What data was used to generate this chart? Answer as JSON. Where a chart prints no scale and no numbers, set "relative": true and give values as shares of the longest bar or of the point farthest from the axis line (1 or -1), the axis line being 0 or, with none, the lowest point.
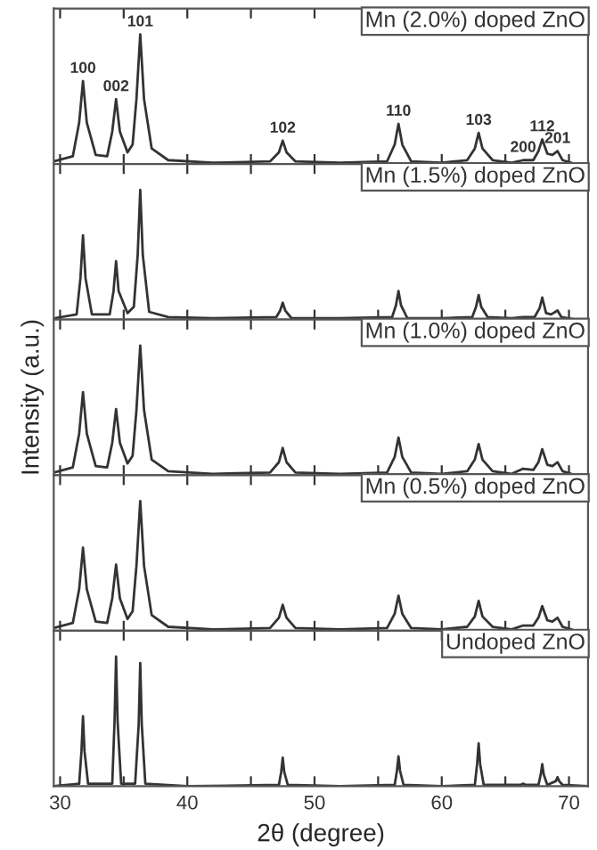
{
  "chart_data": [
    {
      "type": "line",
      "relative": true,
      "xlim": [
        29.5,
        71.5
      ],
      "xticks": [
        30,
        {
          "value": 35,
          "label": null
        },
        40,
        {
          "value": 45,
          "label": null
        },
        50,
        {
          "value": 55,
          "label": null
        },
        60,
        {
          "value": 65,
          "label": null
        },
        70
      ],
      "tick_labels": false,
      "annotations": [
        "Mn (2.0%) doped ZnO",
        {
          "text": "100",
          "x": 31.8,
          "y": 0.64
        },
        {
          "text": "002",
          "x": 34.4,
          "y": 0.5
        },
        {
          "text": "101",
          "x": 36.3,
          "y": 1
        },
        {
          "text": "102",
          "x": 47.5,
          "y": 0.18
        },
        {
          "text": "110",
          "x": 56.6,
          "y": 0.31
        },
        {
          "text": "103",
          "x": 62.9,
          "y": 0.24
        },
        {
          "text": "200",
          "x": 66.4,
          "y": 0.03
        },
        {
          "text": "112",
          "x": 67.9,
          "y": 0.19
        },
        {
          "text": "201",
          "x": 69.1,
          "y": 0.1
        }
      ],
      "series": [
        {
          "color": "#333333",
          "x": [
            29.5,
            31.0,
            31.5,
            31.8,
            32.1,
            32.8,
            33.7,
            34.1,
            34.4,
            34.7,
            35.3,
            35.7,
            36.0,
            36.3,
            36.6,
            37.2,
            38.5,
            42,
            46.5,
            47.2,
            47.5,
            47.8,
            48.5,
            52,
            55.7,
            56.3,
            56.6,
            56.9,
            57.6,
            60,
            62.0,
            62.6,
            62.9,
            63.2,
            64,
            65.5,
            66.4,
            67.2,
            67.6,
            67.9,
            68.3,
            68.7,
            69.1,
            69.5,
            70.5,
            71.5
          ],
          "values": [
            0.02,
            0.06,
            0.32,
            0.64,
            0.32,
            0.07,
            0.06,
            0.25,
            0.5,
            0.25,
            0.09,
            0.15,
            0.5,
            1,
            0.5,
            0.12,
            0.03,
            0.01,
            0.02,
            0.09,
            0.18,
            0.09,
            0.02,
            0.01,
            0.02,
            0.15,
            0.31,
            0.15,
            0.02,
            0.01,
            0.03,
            0.12,
            0.24,
            0.12,
            0.03,
            0.01,
            0.03,
            0.03,
            0.1,
            0.19,
            0.08,
            0.07,
            0.1,
            0.03,
            0,
            0
          ]
        }
      ]
    },
    {
      "type": "line",
      "relative": true,
      "xlim": [
        29.5,
        71.5
      ],
      "xticks": [
        30,
        {
          "value": 35,
          "label": null
        },
        40,
        {
          "value": 45,
          "label": null
        },
        50,
        {
          "value": 55,
          "label": null
        },
        60,
        {
          "value": 65,
          "label": null
        },
        70
      ],
      "tick_labels": false,
      "annotations": [
        "Mn (1.5%) doped ZnO"
      ],
      "series": [
        {
          "color": "#333333",
          "x": [
            29.5,
            31.3,
            31.6,
            31.8,
            32.0,
            32.5,
            33.9,
            34.2,
            34.4,
            34.6,
            35.3,
            35.8,
            36.1,
            36.3,
            36.5,
            37.0,
            38.5,
            42,
            47.0,
            47.3,
            47.5,
            47.7,
            48.2,
            52,
            56.1,
            56.4,
            56.6,
            56.8,
            57.3,
            60,
            62.4,
            62.7,
            62.9,
            63.1,
            63.6,
            65.5,
            66.4,
            67.3,
            67.7,
            67.9,
            68.2,
            68.6,
            69.1,
            69.4,
            70.5,
            71.5
          ],
          "values": [
            0.01,
            0.04,
            0.32,
            0.65,
            0.32,
            0.04,
            0.04,
            0.22,
            0.45,
            0.22,
            0.05,
            0.1,
            0.5,
            1,
            0.5,
            0.06,
            0.02,
            0.01,
            0.02,
            0.07,
            0.13,
            0.07,
            0.01,
            0.01,
            0.02,
            0.11,
            0.22,
            0.11,
            0.01,
            0.01,
            0.02,
            0.1,
            0.19,
            0.1,
            0.02,
            0.01,
            0.02,
            0.02,
            0.09,
            0.17,
            0.05,
            0.04,
            0.07,
            0.02,
            0,
            0
          ]
        }
      ]
    },
    {
      "type": "line",
      "relative": true,
      "xlim": [
        29.5,
        71.5
      ],
      "xticks": [
        30,
        {
          "value": 35,
          "label": null
        },
        40,
        {
          "value": 45,
          "label": null
        },
        50,
        {
          "value": 55,
          "label": null
        },
        60,
        {
          "value": 65,
          "label": null
        },
        70
      ],
      "tick_labels": false,
      "ylabel": "Intensity (a.u.)",
      "annotations": [
        "Mn (1.0%) doped ZnO"
      ],
      "series": [
        {
          "color": "#333333",
          "x": [
            29.5,
            31.0,
            31.5,
            31.8,
            32.1,
            32.8,
            33.7,
            34.1,
            34.4,
            34.7,
            35.3,
            35.7,
            36.0,
            36.3,
            36.6,
            37.2,
            38.5,
            42,
            46.5,
            47.2,
            47.5,
            47.8,
            48.5,
            52,
            55.7,
            56.3,
            56.6,
            56.9,
            57.6,
            60,
            62.0,
            62.6,
            62.9,
            63.2,
            64,
            65.5,
            66.4,
            67.2,
            67.6,
            67.9,
            68.3,
            68.7,
            69.1,
            69.5,
            70.5,
            71.5
          ],
          "values": [
            0.02,
            0.06,
            0.32,
            0.64,
            0.32,
            0.07,
            0.06,
            0.25,
            0.51,
            0.25,
            0.09,
            0.15,
            0.5,
            1,
            0.5,
            0.12,
            0.03,
            0.01,
            0.02,
            0.1,
            0.21,
            0.1,
            0.02,
            0.01,
            0.02,
            0.14,
            0.29,
            0.14,
            0.02,
            0.01,
            0.03,
            0.12,
            0.24,
            0.12,
            0.03,
            0.01,
            0.05,
            0.04,
            0.1,
            0.2,
            0.08,
            0.07,
            0.1,
            0.03,
            0,
            0
          ]
        }
      ]
    },
    {
      "type": "line",
      "relative": true,
      "xlim": [
        29.5,
        71.5
      ],
      "xticks": [
        30,
        {
          "value": 35,
          "label": null
        },
        40,
        {
          "value": 45,
          "label": null
        },
        50,
        {
          "value": 55,
          "label": null
        },
        60,
        {
          "value": 65,
          "label": null
        },
        70
      ],
      "tick_labels": false,
      "annotations": [
        "Mn (0.5%) doped ZnO"
      ],
      "series": [
        {
          "color": "#333333",
          "x": [
            29.5,
            31.0,
            31.5,
            31.8,
            32.1,
            32.8,
            33.7,
            34.1,
            34.4,
            34.7,
            35.3,
            35.7,
            36.0,
            36.3,
            36.6,
            37.2,
            38.5,
            42,
            46.5,
            47.2,
            47.5,
            47.8,
            48.5,
            52,
            55.7,
            56.3,
            56.6,
            56.9,
            57.6,
            60,
            62.0,
            62.6,
            62.9,
            63.2,
            64,
            65.5,
            66.4,
            67.2,
            67.6,
            67.9,
            68.3,
            68.7,
            69.1,
            69.5,
            70.5,
            71.5
          ],
          "values": [
            0.02,
            0.06,
            0.32,
            0.64,
            0.32,
            0.07,
            0.06,
            0.25,
            0.51,
            0.25,
            0.09,
            0.15,
            0.5,
            1,
            0.5,
            0.12,
            0.03,
            0.01,
            0.02,
            0.1,
            0.2,
            0.1,
            0.02,
            0.01,
            0.02,
            0.13,
            0.27,
            0.13,
            0.02,
            0.01,
            0.03,
            0.11,
            0.23,
            0.11,
            0.03,
            0.01,
            0.04,
            0.04,
            0.1,
            0.19,
            0.08,
            0.07,
            0.1,
            0.03,
            0,
            0
          ]
        }
      ]
    },
    {
      "type": "line",
      "relative": true,
      "xlim": [
        29.5,
        71.5
      ],
      "xticks": [
        30,
        {
          "value": 35,
          "label": null
        },
        40,
        {
          "value": 45,
          "label": null
        },
        50,
        {
          "value": 55,
          "label": null
        },
        60,
        {
          "value": 65,
          "label": null
        },
        70
      ],
      "tick_labels": "x",
      "xlabel": "2θ (degree)",
      "annotations": [
        "Undoped ZnO"
      ],
      "series": [
        {
          "color": "#333333",
          "x": [
            29.5,
            31.5,
            31.68,
            31.8,
            31.92,
            32.2,
            34.1,
            34.28,
            34.4,
            34.52,
            34.8,
            35.9,
            36.18,
            36.3,
            36.42,
            36.7,
            40,
            47.2,
            47.38,
            47.5,
            47.62,
            47.9,
            52,
            56.3,
            56.48,
            56.6,
            56.72,
            57.0,
            60,
            62.6,
            62.78,
            62.9,
            63.02,
            63.3,
            66.2,
            66.4,
            66.6,
            67.6,
            67.78,
            67.9,
            68.02,
            68.3,
            68.97,
            69.1,
            69.23,
            69.5,
            71.5
          ],
          "values": [
            0,
            0.02,
            0.27,
            0.54,
            0.27,
            0.02,
            0.02,
            0.5,
            1,
            0.5,
            0.02,
            0.02,
            0.48,
            0.95,
            0.48,
            0.02,
            0,
            0.01,
            0.11,
            0.22,
            0.11,
            0.01,
            0,
            0.01,
            0.12,
            0.23,
            0.12,
            0.01,
            0,
            0.01,
            0.17,
            0.33,
            0.17,
            0.01,
            0.01,
            0.02,
            0.01,
            0.01,
            0.09,
            0.17,
            0.09,
            0.01,
            0.04,
            0.07,
            0.04,
            0.01,
            0
          ]
        }
      ]
    }
  ]
}
